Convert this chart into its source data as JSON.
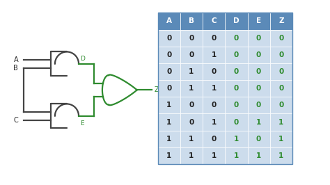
{
  "bg_color": "#ffffff",
  "bg_inner": "#f5f5f5",
  "border_color": "#222222",
  "table_header_bg": "#5b8ab8",
  "table_header_text": "#ffffff",
  "table_row_bg": "#ccdcec",
  "table_border": "#5b8ab8",
  "black_color": "#222222",
  "green_color": "#2e8b2e",
  "gray_color": "#444444",
  "headers": [
    "A",
    "B",
    "C",
    "D",
    "E",
    "Z"
  ],
  "rows": [
    [
      0,
      0,
      0,
      0,
      0,
      0
    ],
    [
      0,
      0,
      1,
      0,
      0,
      0
    ],
    [
      0,
      1,
      0,
      0,
      0,
      0
    ],
    [
      0,
      1,
      1,
      0,
      0,
      0
    ],
    [
      1,
      0,
      0,
      0,
      0,
      0
    ],
    [
      1,
      0,
      1,
      0,
      1,
      1
    ],
    [
      1,
      1,
      0,
      1,
      0,
      1
    ],
    [
      1,
      1,
      1,
      1,
      1,
      1
    ]
  ],
  "col_colors": [
    false,
    false,
    false,
    true,
    true,
    true
  ]
}
